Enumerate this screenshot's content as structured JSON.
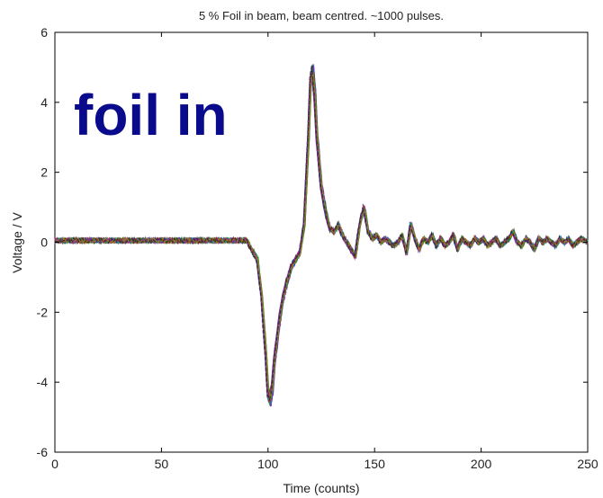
{
  "chart_data": {
    "type": "line",
    "title": "5 % Foil in beam, beam centred. ~1000 pulses.",
    "xlabel": "Time (counts)",
    "ylabel": "Voltage / V",
    "xlim": [
      0,
      250
    ],
    "ylim": [
      -6,
      6
    ],
    "xticks": [
      0,
      50,
      100,
      150,
      200,
      250
    ],
    "yticks": [
      -6,
      -4,
      -2,
      0,
      2,
      4,
      6
    ],
    "xtick_labels": [
      "0",
      "50",
      "100",
      "150",
      "200",
      "250"
    ],
    "ytick_labels": [
      "-6",
      "-4",
      "-2",
      "0",
      "2",
      "4",
      "6"
    ],
    "grid": false,
    "annotation": {
      "text": "foil in",
      "color": "#0a0a8c"
    },
    "series_colors": [
      "#1f3fbf",
      "#1a8a1a",
      "#cc2222",
      "#16a0a0",
      "#a020a0",
      "#a08a10",
      "#222222"
    ],
    "series": [
      {
        "x": [
          0,
          10,
          20,
          30,
          40,
          50,
          60,
          70,
          80,
          90,
          95,
          97,
          99,
          100,
          101,
          102,
          103,
          105,
          107,
          109,
          111,
          113,
          115,
          117,
          119,
          120,
          121,
          122,
          123,
          125,
          127,
          129,
          131,
          133,
          135,
          137,
          139,
          141,
          143,
          145,
          147,
          149,
          151,
          153,
          155,
          157,
          159,
          161,
          163,
          165,
          167,
          169,
          171,
          173,
          175,
          177,
          179,
          181,
          183,
          185,
          187,
          189,
          191,
          193,
          195,
          197,
          199,
          201,
          203,
          205,
          207,
          209,
          211,
          213,
          215,
          217,
          219,
          221,
          223,
          225,
          227,
          229,
          231,
          233,
          235,
          237,
          239,
          241,
          243,
          245,
          247,
          250
        ],
        "y": [
          0.05,
          0.05,
          0.05,
          0.05,
          0.05,
          0.05,
          0.05,
          0.05,
          0.05,
          0.05,
          -0.5,
          -1.5,
          -3.2,
          -4.3,
          -4.5,
          -4.2,
          -3.4,
          -2.4,
          -1.6,
          -1.1,
          -0.7,
          -0.5,
          -0.3,
          0.5,
          3.0,
          4.6,
          4.9,
          4.2,
          3.0,
          1.6,
          0.9,
          0.4,
          0.3,
          0.5,
          0.2,
          0.0,
          -0.2,
          -0.4,
          0.5,
          1.0,
          0.3,
          0.1,
          0.2,
          0.0,
          0.1,
          0.0,
          -0.1,
          0.0,
          0.2,
          -0.3,
          0.5,
          0.1,
          -0.2,
          0.1,
          0.0,
          0.2,
          -0.1,
          0.1,
          -0.1,
          0.0,
          0.2,
          -0.2,
          0.1,
          0.0,
          -0.1,
          0.1,
          0.0,
          0.1,
          -0.1,
          0.0,
          0.1,
          -0.1,
          0.0,
          0.1,
          0.3,
          0.0,
          -0.1,
          0.1,
          0.0,
          -0.2,
          0.1,
          0.0,
          0.1,
          0.0,
          -0.1,
          0.1,
          0.0,
          0.1,
          -0.1,
          0.0,
          0.1,
          0.0
        ]
      }
    ]
  }
}
